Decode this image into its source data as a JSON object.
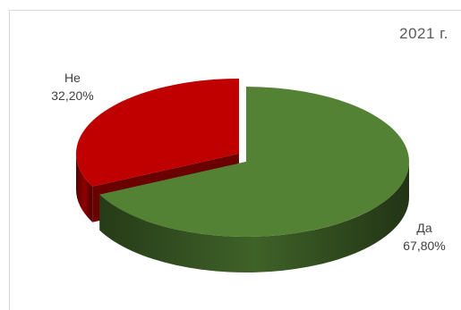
{
  "chart_data": {
    "type": "pie",
    "title": "2021 г.",
    "slices": [
      {
        "label": "Да",
        "value": 67.8,
        "value_label": "67,80%",
        "color": "#548235"
      },
      {
        "label": "Не",
        "value": 32.2,
        "value_label": "32,20%",
        "color": "#c00000"
      }
    ],
    "style": "3d-exploded"
  }
}
